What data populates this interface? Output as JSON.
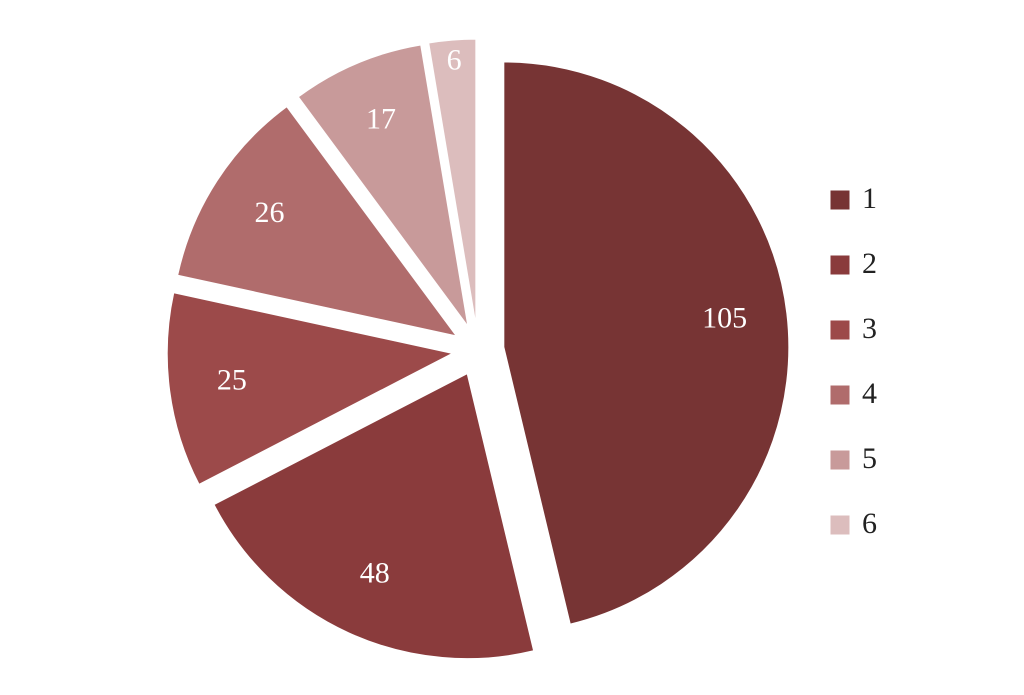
{
  "chart_data": {
    "type": "pie",
    "categories": [
      "1",
      "2",
      "3",
      "4",
      "5",
      "6"
    ],
    "values": [
      105,
      48,
      25,
      26,
      17,
      6
    ],
    "colors": [
      "#773434",
      "#8a3b3c",
      "#9c4a4a",
      "#b06c6c",
      "#c89a9a",
      "#dcbdbd"
    ],
    "legend": "right"
  }
}
